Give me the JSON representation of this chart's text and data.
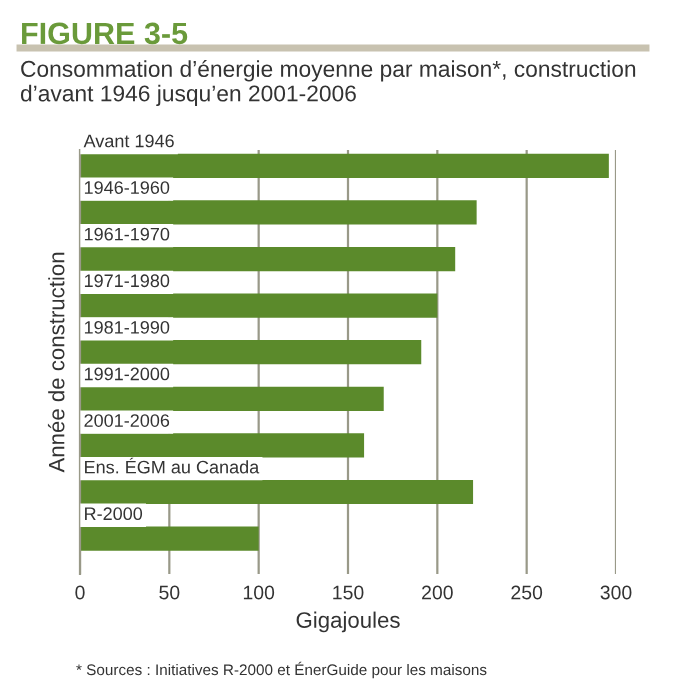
{
  "chart_data": {
    "type": "bar",
    "orientation": "horizontal",
    "title": "FIGURE 3-5",
    "subtitle": "Consommation d’énergie moyenne par maison*, construction d’avant 1946 jusqu’en 2001-2006",
    "xlabel": "Gigajoules",
    "ylabel": "Année de construction",
    "categories": [
      "Avant 1946",
      "1946-1960",
      "1961-1970",
      "1971-1980",
      "1981-1990",
      "1991-2000",
      "2001-2006",
      "Ens. ÉGM au Canada",
      "R-2000"
    ],
    "values": [
      296,
      222,
      210,
      200,
      191,
      170,
      159,
      220,
      100
    ],
    "color": "#5b8a2b",
    "xlim": [
      0,
      300
    ],
    "xticks": [
      0,
      50,
      100,
      150,
      200,
      250,
      300
    ],
    "grid": "x",
    "annotations": [
      "* Sources : Initiatives R-2000 et ÉnerGuide pour les maisons"
    ]
  }
}
